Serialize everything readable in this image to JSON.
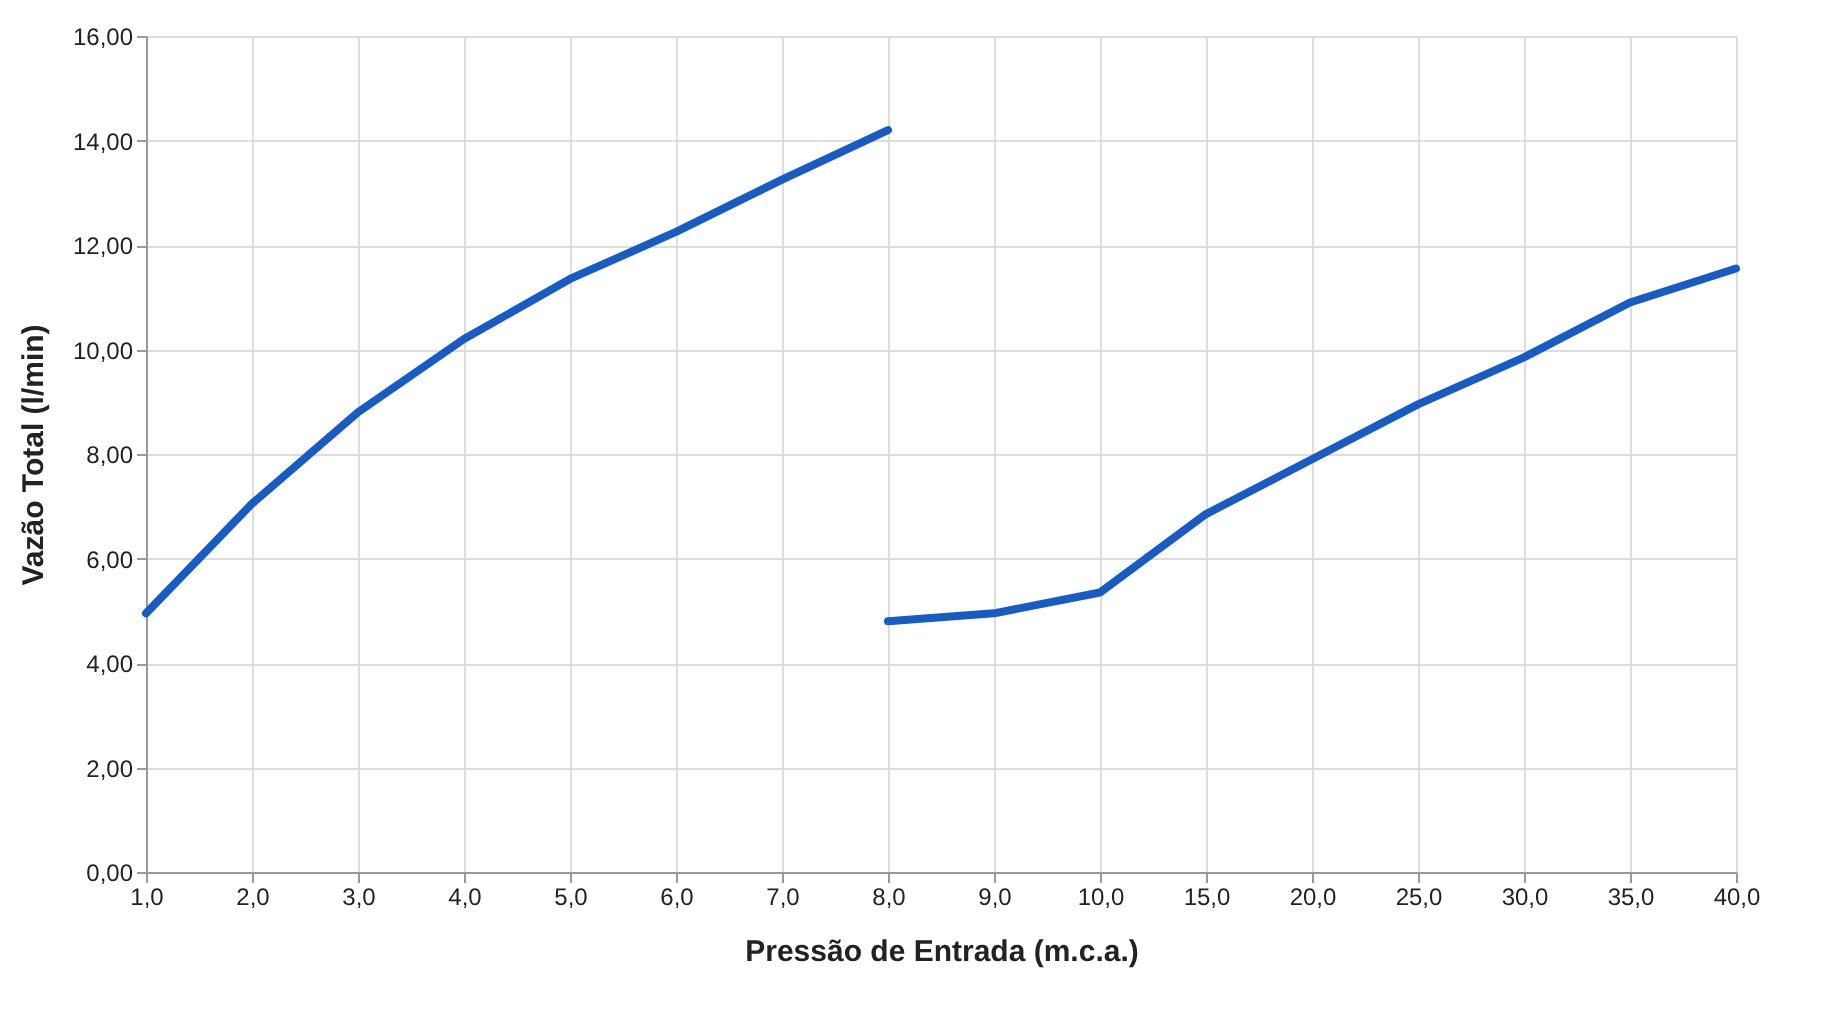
{
  "chart_data": {
    "type": "line",
    "xlabel": "Pressão de Entrada (m.c.a.)",
    "ylabel": "Vazão Total (l/min)",
    "categories": [
      "1,0",
      "2,0",
      "3,0",
      "4,0",
      "5,0",
      "6,0",
      "7,0",
      "8,0",
      "9,0",
      "10,0",
      "15,0",
      "20,0",
      "25,0",
      "30,0",
      "35,0",
      "40,0"
    ],
    "series": [
      {
        "color": "#1a5bbf",
        "values": [
          4.95,
          7.05,
          8.8,
          10.2,
          11.35,
          12.25,
          13.25,
          14.2,
          null,
          null,
          null,
          null,
          null,
          null,
          null,
          null
        ]
      },
      {
        "color": "#1a5bbf",
        "values": [
          null,
          null,
          null,
          null,
          null,
          null,
          null,
          4.8,
          4.95,
          5.35,
          6.85,
          7.9,
          8.95,
          9.85,
          10.9,
          11.55
        ]
      }
    ],
    "ylim": [
      0,
      16
    ],
    "yticks": [
      {
        "value": 0,
        "label": "0,00"
      },
      {
        "value": 2,
        "label": "2,00"
      },
      {
        "value": 4,
        "label": "4,00"
      },
      {
        "value": 6,
        "label": "6,00"
      },
      {
        "value": 8,
        "label": "8,00"
      },
      {
        "value": 10,
        "label": "10,00"
      },
      {
        "value": 12,
        "label": "12,00"
      },
      {
        "value": 14,
        "label": "14,00"
      },
      {
        "value": 16,
        "label": "16,00"
      }
    ],
    "grid": true,
    "legend": false,
    "marker": "none",
    "line_style": "solid"
  }
}
